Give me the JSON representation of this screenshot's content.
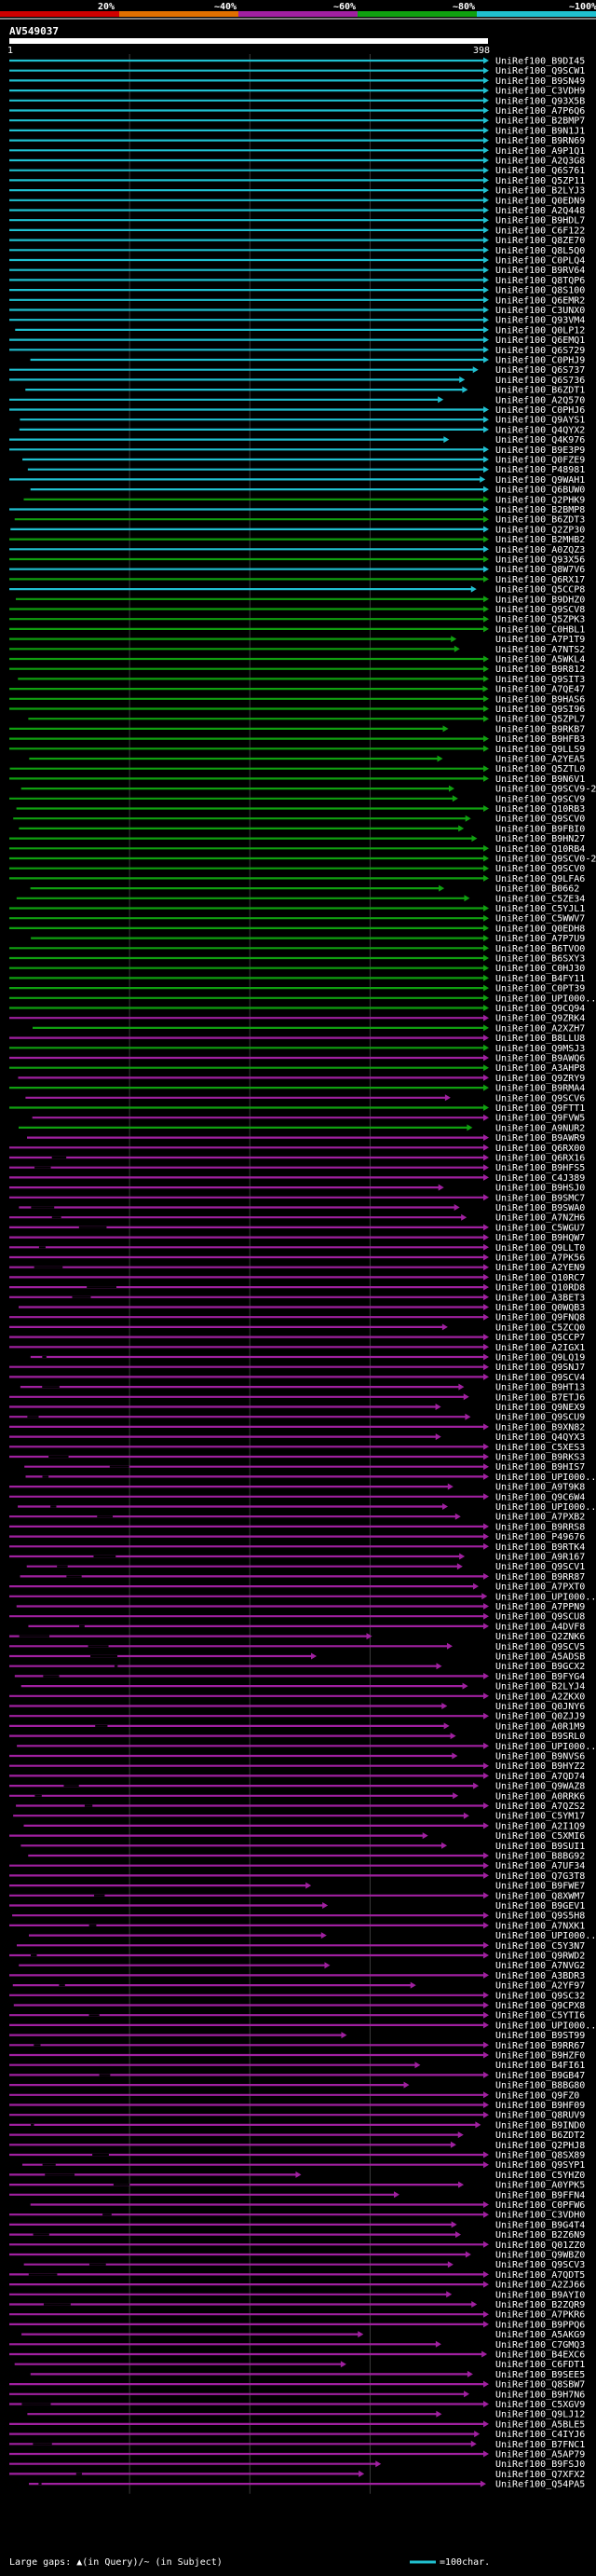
{
  "chart_data": {
    "type": "alignment-overview",
    "title": "AV549037",
    "query_range": {
      "start": "1",
      "end": "398"
    },
    "query_length": 398,
    "identity_scale": {
      "labels": [
        "20%",
        "~40%",
        "~60%",
        "~80%",
        "~100%"
      ],
      "colors": [
        "#d00000",
        "#e07000",
        "#a020a0",
        "#10a010",
        "#20c0d0"
      ]
    },
    "footer": {
      "gap_legend": "Large gaps: ▲(in Query)/~ (in Subject)",
      "scale_legend": "=100char."
    },
    "hits": [
      "UniRef100_B9DI45",
      "UniRef100_Q9SCW1",
      "UniRef100_B9SN49",
      "UniRef100_C3VDH9",
      "UniRef100_Q93X5B",
      "UniRef100_A7P6Q6",
      "UniRef100_B2BMP7",
      "UniRef100_B9N1J1",
      "UniRef100_B9RN69",
      "UniRef100_A9P1Q1",
      "UniRef100_A2Q3G8",
      "UniRef100_Q6S761",
      "UniRef100_Q5ZP11",
      "UniRef100_B2LYJ3",
      "UniRef100_Q0EDN9",
      "UniRef100_A2Q448",
      "UniRef100_B9HDL7",
      "UniRef100_C6F122",
      "UniRef100_Q8ZE70",
      "UniRef100_Q8L5Q0",
      "UniRef100_C0PLQ4",
      "UniRef100_B9RV64",
      "UniRef100_Q8TQP6",
      "UniRef100_Q8S100",
      "UniRef100_Q6EMR2",
      "UniRef100_C3UNX0",
      "UniRef100_Q93VM4",
      "UniRef100_Q0LP12",
      "UniRef100_Q6EMQ1",
      "UniRef100_Q6S729",
      "UniRef100_C0PHJ9",
      "UniRef100_Q6S737",
      "UniRef100_Q6S736",
      "UniRef100_B6ZDT1",
      "UniRef100_A2Q570",
      "UniRef100_C0PHJ6",
      "UniRef100_Q9AYS1",
      "UniRef100_Q4QYX2",
      "UniRef100_Q4K976",
      "UniRef100_B9E3P9",
      "UniRef100_Q0FZE9",
      "UniRef100_P48981",
      "UniRef100_Q9WAH1",
      "UniRef100_Q6BUW0",
      "UniRef100_Q2PHK9",
      "UniRef100_B2BMP8",
      "UniRef100_B6ZDT3",
      "UniRef100_Q2ZP30",
      "UniRef100_B2MHB2",
      "UniRef100_A0ZQZ3",
      "UniRef100_Q93X56",
      "UniRef100_Q8W7V6",
      "UniRef100_Q6RX17",
      "UniRef100_Q5CCP8",
      "UniRef100_B9DHZ0",
      "UniRef100_Q9SCV8",
      "UniRef100_Q5ZPK3",
      "UniRef100_C0HBL1",
      "UniRef100_A7P1T9",
      "UniRef100_A7NTS2",
      "UniRef100_A5WKL4",
      "UniRef100_B9R812",
      "UniRef100_Q9SIT3",
      "UniRef100_A7QE47",
      "UniRef100_B9HAS6",
      "UniRef100_Q9SI96",
      "UniRef100_Q5ZPL7",
      "UniRef100_B9RKB7",
      "UniRef100_B9HFB3",
      "UniRef100_Q9LLS9",
      "UniRef100_A2YEA5",
      "UniRef100_Q5ZTL0",
      "UniRef100_B9N6V1",
      "UniRef100_Q9SCV9-2",
      "UniRef100_Q9SCV9",
      "UniRef100_Q10RB3",
      "UniRef100_Q9SCV0",
      "UniRef100_B9FBI0",
      "UniRef100_B9HN27",
      "UniRef100_Q10RB4",
      "UniRef100_Q9SCV0-2",
      "UniRef100_Q9SCV0",
      "UniRef100_Q9LFA6",
      "UniRef100_B0662",
      "UniRef100_C5ZE34",
      "UniRef100_C5YJL1",
      "UniRef100_C5WWV7",
      "UniRef100_Q0EDH8",
      "UniRef100_A7P7U9",
      "UniRef100_B6TVO0",
      "UniRef100_B6SXY3",
      "UniRef100_C0HJ30",
      "UniRef100_B4FY11",
      "UniRef100_C0PT39",
      "UniRef100_UPI000...",
      "UniRef100_Q9CQ94",
      "UniRef100_Q9ZRK4",
      "UniRef100_A2XZH7",
      "UniRef100_B8LLU8",
      "UniRef100_Q9MSJ3",
      "UniRef100_B9AWQ6",
      "UniRef100_A3AHP8",
      "UniRef100_Q9ZRY9",
      "UniRef100_B9RMA4",
      "UniRef100_Q9SCV6",
      "UniRef100_Q9FTT1",
      "UniRef100_Q9FVW5",
      "UniRef100_A9NUR2",
      "UniRef100_B9AWR9",
      "UniRef100_Q6RX00",
      "UniRef100_Q6RX16",
      "UniRef100_B9HFS5",
      "UniRef100_C4J389",
      "UniRef100_B9HSJ0",
      "UniRef100_B9SMC7",
      "UniRef100_B9SWA0",
      "UniRef100_A7NZH6",
      "UniRef100_C5WGU7",
      "UniRef100_B9HQW7",
      "UniRef100_Q9LLT0",
      "UniRef100_A7PK56",
      "UniRef100_A2YEN9",
      "UniRef100_Q10RC7",
      "UniRef100_Q10RD8",
      "UniRef100_A3BET3",
      "UniRef100_Q0WQB3",
      "UniRef100_Q9FNQ8",
      "UniRef100_C5ZCQ0",
      "UniRef100_Q5CCP7",
      "UniRef100_A2IGX1",
      "UniRef100_Q9LQ19",
      "UniRef100_Q9SNJ7",
      "UniRef100_Q9SCV4",
      "UniRef100_B9HT13",
      "UniRef100_B7ETJ6",
      "UniRef100_Q9NEX9",
      "UniRef100_Q9SCU9",
      "UniRef100_B9XN82",
      "UniRef100_Q4QYX3",
      "UniRef100_C5XES3",
      "UniRef100_B9RKS3",
      "UniRef100_B9HIS7",
      "UniRef100_UPI000...",
      "UniRef100_A9T9K8",
      "UniRef100_Q9C6W4",
      "UniRef100_UPI000...",
      "UniRef100_A7PXB2",
      "UniRef100_B9RRS8",
      "UniRef100_P49676",
      "UniRef100_B9RTK4",
      "UniRef100_A9R167",
      "UniRef100_Q9SCV1",
      "UniRef100_B9RR87",
      "UniRef100_A7PXT0",
      "UniRef100_UPI000...",
      "UniRef100_A7PPN9",
      "UniRef100_Q9SCU8",
      "UniRef100_A4DVF8",
      "UniRef100_Q2ZNK6",
      "UniRef100_Q9SCV5",
      "UniRef100_A5ADSB",
      "UniRef100_B9GCX2",
      "UniRef100_B9FYG4",
      "UniRef100_B2LYJ4",
      "UniRef100_A2ZKX0",
      "UniRef100_Q0JNY6",
      "UniRef100_Q0ZJJ9",
      "UniRef100_A0R1M9",
      "UniRef100_B9SRL0",
      "UniRef100_UPI000...",
      "UniRef100_B9NVS6",
      "UniRef100_B9HYZ2",
      "UniRef100_A7QD74",
      "UniRef100_Q9WAZ8",
      "UniRef100_A0RRK6",
      "UniRef100_A7QZS2",
      "UniRef100_C5YM17",
      "UniRef100_A2I1Q9",
      "UniRef100_C5XMI6",
      "UniRef100_B9SUI1",
      "UniRef100_B8BG92",
      "UniRef100_A7UF34",
      "UniRef100_Q7G3T8",
      "UniRef100_B9FWE7",
      "UniRef100_Q8XWM7",
      "UniRef100_B9GEV1",
      "UniRef100_Q9S5H8",
      "UniRef100_A7NXK1",
      "UniRef100_UPI000...",
      "UniRef100_C5Y3N7",
      "UniRef100_Q9RWD2",
      "UniRef100_A7NVG2",
      "UniRef100_A3BDR3",
      "UniRef100_A2YF97",
      "UniRef100_Q9SC32",
      "UniRef100_Q9CPX8",
      "UniRef100_C5YTI6",
      "UniRef100_UPI000...",
      "UniRef100_B9ST99",
      "UniRef100_B9RR67",
      "UniRef100_B9HZF0",
      "UniRef100_B4FI61",
      "UniRef100_B9GB47",
      "UniRef100_B8BG80",
      "UniRef100_Q9FZ0",
      "UniRef100_B9HF09",
      "UniRef100_Q8RUV9",
      "UniRef100_B9IND0",
      "UniRef100_B6ZDT2",
      "UniRef100_Q2PHJ8",
      "UniRef100_Q8SX89",
      "UniRef100_Q9SYP1",
      "UniRef100_C5YHZ0",
      "UniRef100_A0YPK5",
      "UniRef100_B9FFN4",
      "UniRef100_C0PFW6",
      "UniRef100_C3VDH0",
      "UniRef100_B9G4T4",
      "UniRef100_B2Z6N9",
      "UniRef100_Q01ZZ0",
      "UniRef100_Q9WBZ0",
      "UniRef100_Q9SCV3",
      "UniRef100_A7QDT5",
      "UniRef100_A2ZJ66",
      "UniRef100_B9AYI0",
      "UniRef100_B2ZQR9",
      "UniRef100_A7PKR6",
      "UniRef100_B9PPQ6",
      "UniRef100_A5AKG9",
      "UniRef100_C7GMQ3",
      "UniRef100_B4EXC6",
      "UniRef100_C6FDT1",
      "UniRef100_B9SEE5",
      "UniRef100_Q8SBW7",
      "UniRef100_B9H7N6",
      "UniRef100_C5XGV9",
      "UniRef100_Q9LJ12",
      "UniRef100_A5BLE5",
      "UniRef100_C4IYJ6",
      "UniRef100_B7FNC1",
      "UniRef100_A5AP79",
      "UniRef100_B9FSJ0",
      "UniRef100_Q7XFX2",
      "UniRef100_Q54PA5"
    ]
  }
}
